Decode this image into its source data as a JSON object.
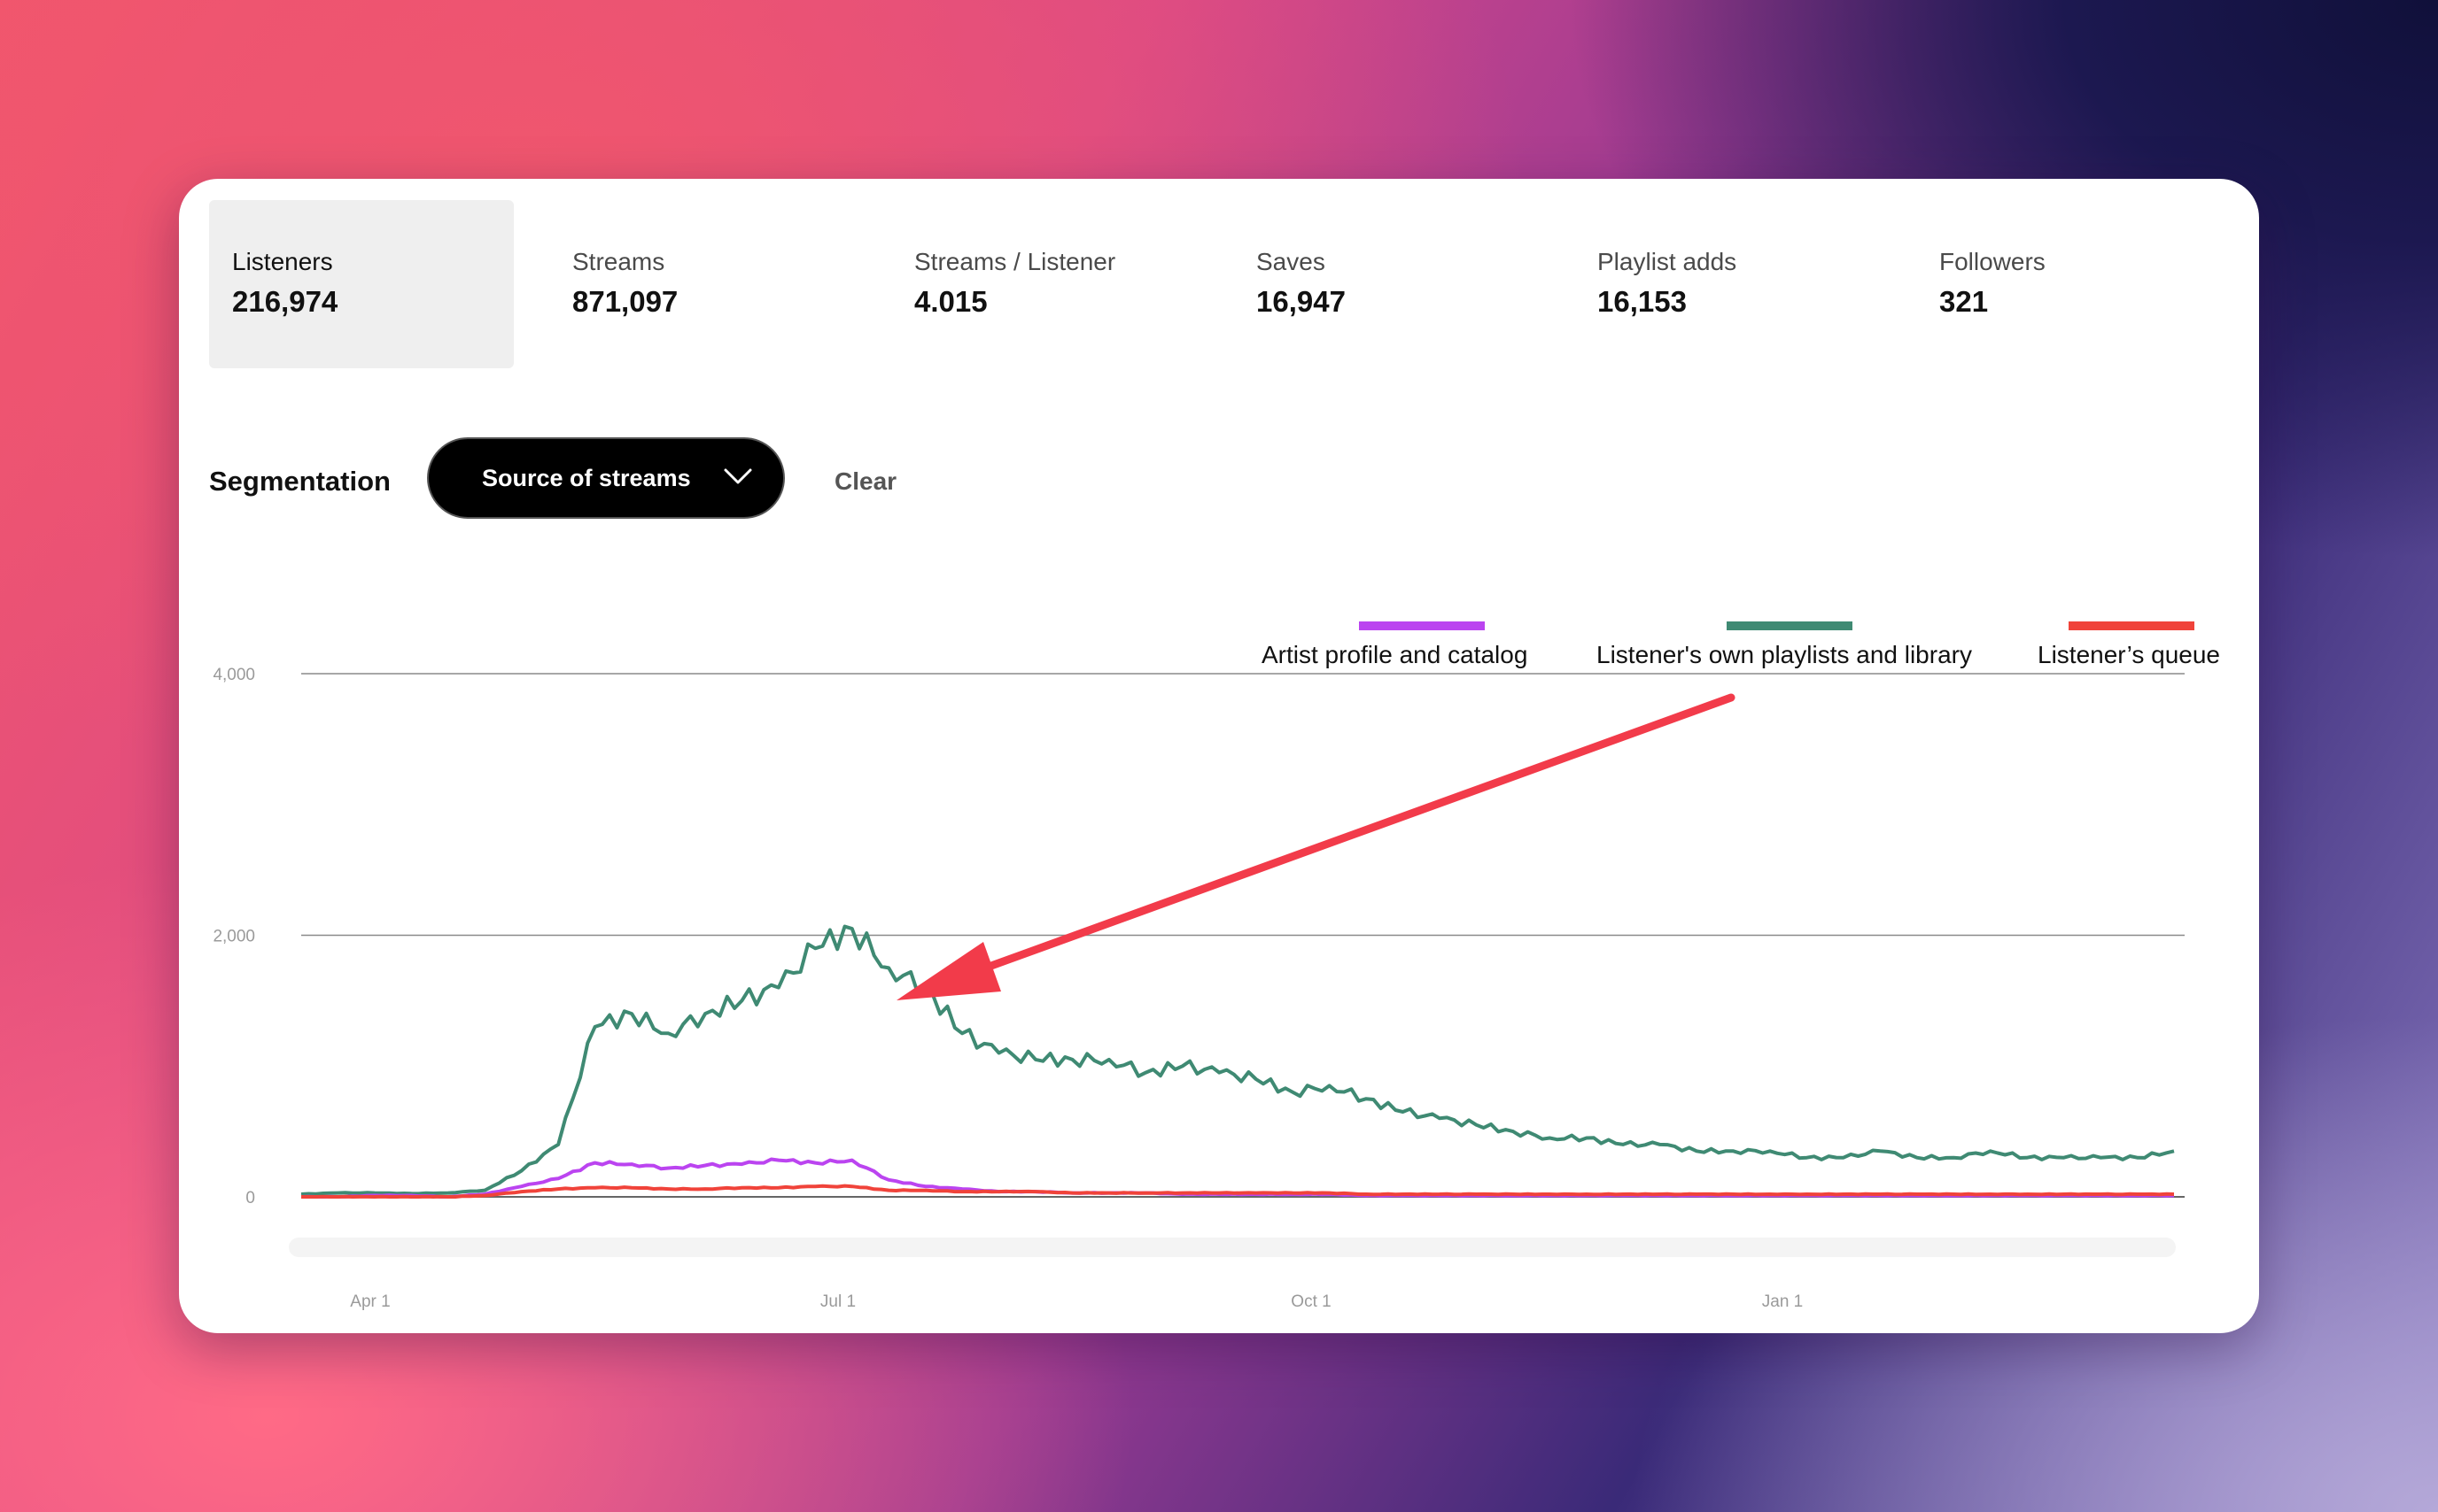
{
  "metrics": [
    {
      "label": "Listeners",
      "value": "216,974",
      "active": true
    },
    {
      "label": "Streams",
      "value": "871,097",
      "active": false
    },
    {
      "label": "Streams / Listener",
      "value": "4.015",
      "active": false
    },
    {
      "label": "Saves",
      "value": "16,947",
      "active": false
    },
    {
      "label": "Playlist adds",
      "value": "16,153",
      "active": false
    },
    {
      "label": "Followers",
      "value": "321",
      "active": false
    }
  ],
  "segmentation": {
    "label": "Segmentation",
    "selected": "Source of streams",
    "clear_label": "Clear"
  },
  "colors": {
    "artist": "#bb44f0",
    "playlists": "#3f8a73",
    "queue": "#f0433a",
    "annotation_arrow": "#f23b4a"
  },
  "chart_data": {
    "type": "line",
    "ylim": [
      0,
      4000
    ],
    "y_ticks": [
      "0",
      "2,000",
      "4,000"
    ],
    "x_ticks": [
      "Apr 1",
      "Jul 1",
      "Oct 1",
      "Jan 1"
    ],
    "grid": true,
    "legend_position": "top-right",
    "x": [
      "Mar 16",
      "Mar 23",
      "Mar 30",
      "Apr 6",
      "Apr 13",
      "Apr 20",
      "Apr 27",
      "May 4",
      "May 11",
      "May 18",
      "May 25",
      "Jun 1",
      "Jun 8",
      "Jun 15",
      "Jun 22",
      "Jun 29",
      "Jul 6",
      "Jul 13",
      "Jul 20",
      "Jul 27",
      "Aug 3",
      "Aug 10",
      "Aug 17",
      "Aug 24",
      "Aug 31",
      "Sep 7",
      "Sep 14",
      "Sep 21",
      "Sep 28",
      "Oct 5",
      "Oct 12",
      "Oct 19",
      "Oct 26",
      "Nov 2",
      "Nov 9",
      "Nov 16",
      "Nov 23",
      "Nov 30",
      "Dec 7",
      "Dec 14",
      "Dec 21",
      "Dec 28",
      "Jan 4",
      "Jan 11",
      "Jan 18",
      "Jan 25",
      "Feb 1",
      "Feb 8",
      "Feb 15",
      "Feb 22",
      "Mar 1",
      "Mar 8"
    ],
    "series": [
      {
        "name": "Artist profile and catalog",
        "color": "#bb44f0",
        "values": [
          0,
          0,
          10,
          10,
          0,
          20,
          80,
          140,
          260,
          250,
          220,
          240,
          250,
          280,
          260,
          280,
          130,
          80,
          60,
          40,
          40,
          30,
          30,
          30,
          20,
          20,
          20,
          20,
          20,
          10,
          10,
          10,
          10,
          10,
          10,
          10,
          10,
          10,
          10,
          10,
          10,
          10,
          10,
          10,
          10,
          10,
          10,
          10,
          10,
          10,
          10,
          10
        ]
      },
      {
        "name": "Listener's own playlists and library",
        "color": "#3f8a73",
        "values": [
          20,
          30,
          30,
          25,
          30,
          50,
          200,
          400,
          1300,
          1400,
          1250,
          1400,
          1500,
          1600,
          1900,
          2050,
          1750,
          1600,
          1250,
          1100,
          1050,
          1050,
          1050,
          950,
          1000,
          950,
          900,
          800,
          850,
          750,
          650,
          600,
          550,
          500,
          450,
          450,
          400,
          400,
          350,
          350,
          350,
          300,
          300,
          350,
          300,
          300,
          350,
          300,
          300,
          300,
          300,
          350
        ]
      },
      {
        "name": "Listener’s queue",
        "color": "#f0433a",
        "values": [
          0,
          0,
          0,
          0,
          0,
          10,
          40,
          60,
          70,
          70,
          60,
          60,
          70,
          70,
          80,
          80,
          50,
          50,
          40,
          40,
          40,
          30,
          30,
          30,
          30,
          30,
          30,
          30,
          30,
          20,
          20,
          20,
          20,
          20,
          20,
          20,
          20,
          20,
          20,
          20,
          20,
          20,
          20,
          20,
          20,
          20,
          20,
          20,
          20,
          20,
          20,
          20
        ]
      }
    ]
  }
}
